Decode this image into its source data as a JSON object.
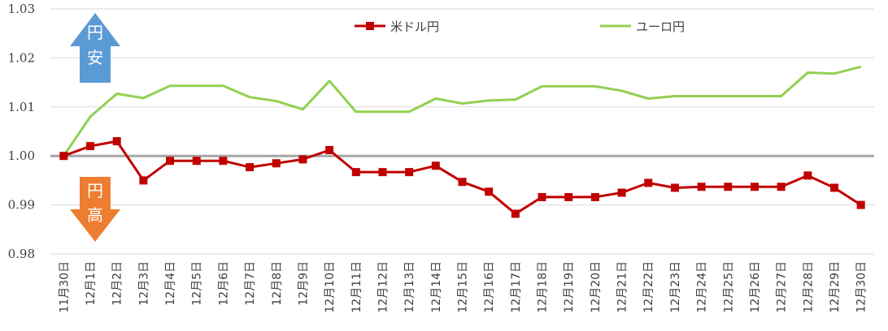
{
  "chart_data": {
    "type": "line",
    "title": "",
    "xlabel": "",
    "ylabel": "",
    "ylim": [
      0.98,
      1.03
    ],
    "y_ticks": [
      "0.98",
      "0.99",
      "1.00",
      "1.01",
      "1.02",
      "1.03"
    ],
    "grid": "horizontal",
    "legend_position": "top",
    "baseline": 1.0,
    "categories": [
      "11月30日",
      "12月1日",
      "12月2日",
      "12月3日",
      "12月4日",
      "12月5日",
      "12月6日",
      "12月7日",
      "12月8日",
      "12月9日",
      "12月10日",
      "12月11日",
      "12月12日",
      "12月13日",
      "12月14日",
      "12月15日",
      "12月16日",
      "12月17日",
      "12月18日",
      "12月19日",
      "12月20日",
      "12月21日",
      "12月22日",
      "12月23日",
      "12月24日",
      "12月25日",
      "12月26日",
      "12月27日",
      "12月28日",
      "12月29日",
      "12月30日"
    ],
    "series": [
      {
        "name": "米ドル円",
        "color": "#C00000",
        "marker": "square",
        "values": [
          1.0,
          1.002,
          1.003,
          0.995,
          0.999,
          0.999,
          0.999,
          0.9977,
          0.9985,
          0.9993,
          1.0012,
          0.9967,
          0.9967,
          0.9967,
          0.998,
          0.9947,
          0.9927,
          0.9882,
          0.9916,
          0.9916,
          0.9916,
          0.9925,
          0.9945,
          0.9935,
          0.9937,
          0.9937,
          0.9937,
          0.9937,
          0.996,
          0.9935,
          0.99
        ]
      },
      {
        "name": "ユーロ円",
        "color": "#92D050",
        "marker": "none",
        "values": [
          1.0,
          1.008,
          1.0127,
          1.0118,
          1.0143,
          1.0143,
          1.0143,
          1.012,
          1.0112,
          1.0095,
          1.0153,
          1.009,
          1.009,
          1.009,
          1.0117,
          1.0107,
          1.0113,
          1.0115,
          1.0142,
          1.0142,
          1.0142,
          1.0133,
          1.0117,
          1.0122,
          1.0122,
          1.0122,
          1.0122,
          1.0122,
          1.017,
          1.0168,
          1.0182
        ]
      }
    ],
    "annotations": {
      "up_arrow": {
        "label_1": "円",
        "label_2": "安",
        "color": "#5B9BD5"
      },
      "down_arrow": {
        "label_1": "円",
        "label_2": "高",
        "color": "#ED7D31"
      }
    },
    "baseline_color": "#A6A6A6",
    "grid_color": "#D9D9D9"
  }
}
